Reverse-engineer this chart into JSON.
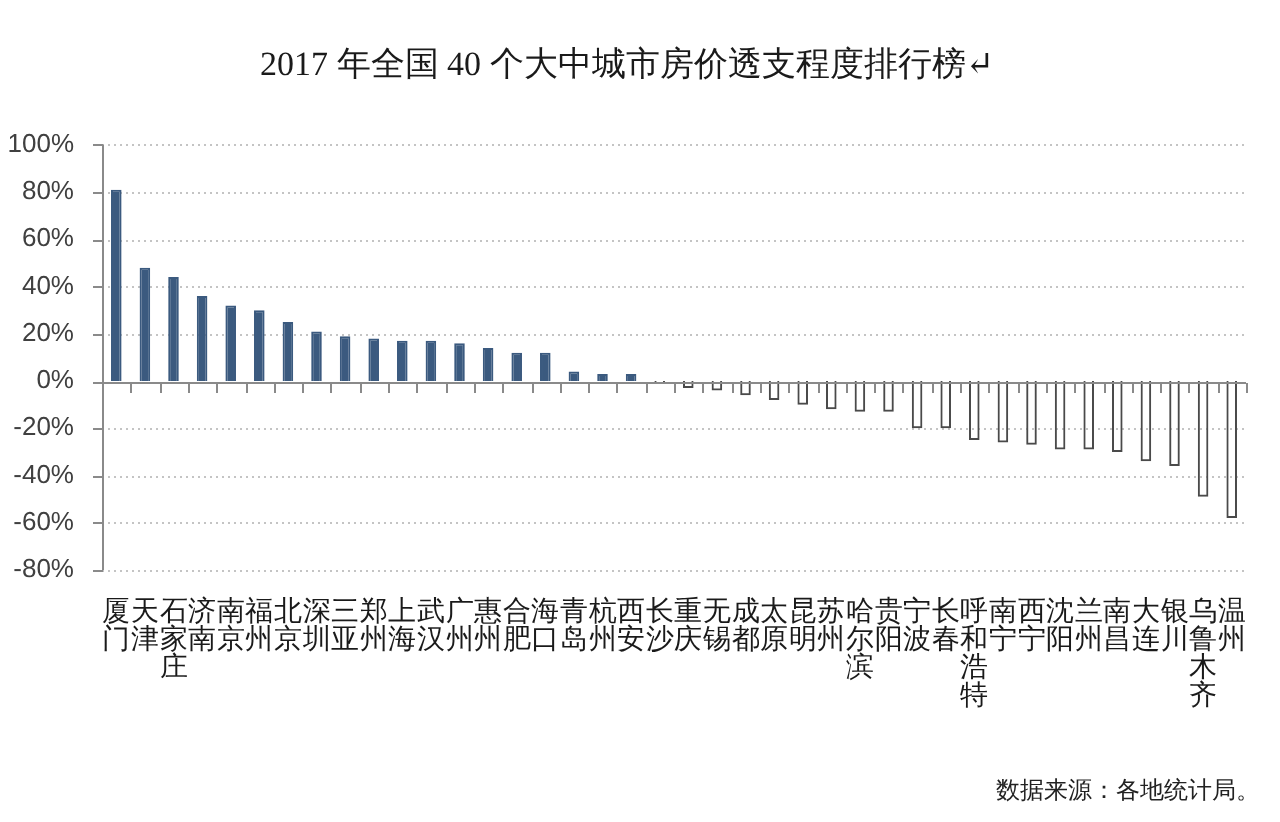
{
  "chart_data": {
    "type": "bar",
    "title": "2017 年全国 40 个大中城市房价透支程度排行榜↵",
    "categories": [
      "厦门",
      "天津",
      "石家庄",
      "济南",
      "南京",
      "福州",
      "北京",
      "深圳",
      "三亚",
      "郑州",
      "上海",
      "武汉",
      "广州",
      "惠州",
      "合肥",
      "海口",
      "青岛",
      "杭州",
      "西安",
      "长沙",
      "重庆",
      "无锡",
      "成都",
      "太原",
      "昆明",
      "苏州",
      "哈尔滨",
      "贵阳",
      "宁波",
      "长春",
      "呼和浩特",
      "南宁",
      "西宁",
      "沈阳",
      "兰州",
      "南昌",
      "大连",
      "银川",
      "乌鲁木齐",
      "温州"
    ],
    "values": [
      81,
      48,
      44,
      36,
      32,
      30,
      25,
      21,
      19,
      18,
      17,
      17,
      16,
      14,
      12,
      12,
      4,
      3,
      3,
      -1,
      -3,
      -4,
      -6,
      -8,
      -10,
      -12,
      -13,
      -13,
      -20,
      -20,
      -25,
      -26,
      -27,
      -29,
      -29,
      -30,
      -34,
      -36,
      -49,
      -58
    ],
    "colors": [
      "#3b5a7f",
      "#3b5a7f",
      "#3b5a7f",
      "#3b5a7f",
      "#3b5a7f",
      "#3b5a7f",
      "#3b5a7f",
      "#3b5a7f",
      "#3b5a7f",
      "#3b5a7f",
      "#3b5a7f",
      "#3b5a7f",
      "#3b5a7f",
      "#3b5a7f",
      "#3b5a7f",
      "#3b5a7f",
      "#3b5a7f",
      "#3b5a7f",
      "#3b5a7f",
      "#4a4a4a",
      "#4a4a4a",
      "#4a4a4a",
      "#4a4a4a",
      "#4a4a4a",
      "#4a4a4a",
      "#4a4a4a",
      "#4a4a4a",
      "#4a4a4a",
      "#4a4a4a",
      "#4a4a4a",
      "#4a4a4a",
      "#4a4a4a",
      "#4a4a4a",
      "#4a4a4a",
      "#4a4a4a",
      "#4a4a4a",
      "#4a4a4a",
      "#4a4a4a",
      "#4a4a4a",
      "#4a4a4a"
    ],
    "ylim": [
      -80,
      100
    ],
    "yticks": [
      {
        "value": -80,
        "label": "-80%"
      },
      {
        "value": -60,
        "label": "-60%"
      },
      {
        "value": -40,
        "label": "-40%"
      },
      {
        "value": -20,
        "label": "-20%"
      },
      {
        "value": 0,
        "label": "0%"
      },
      {
        "value": 20,
        "label": "20%"
      },
      {
        "value": 40,
        "label": "40%"
      },
      {
        "value": 60,
        "label": "60%"
      },
      {
        "value": 80,
        "label": "80%"
      },
      {
        "value": 100,
        "label": "100%"
      }
    ],
    "grid": "y",
    "annotations": [
      "数据来源：各地统计局。"
    ]
  }
}
